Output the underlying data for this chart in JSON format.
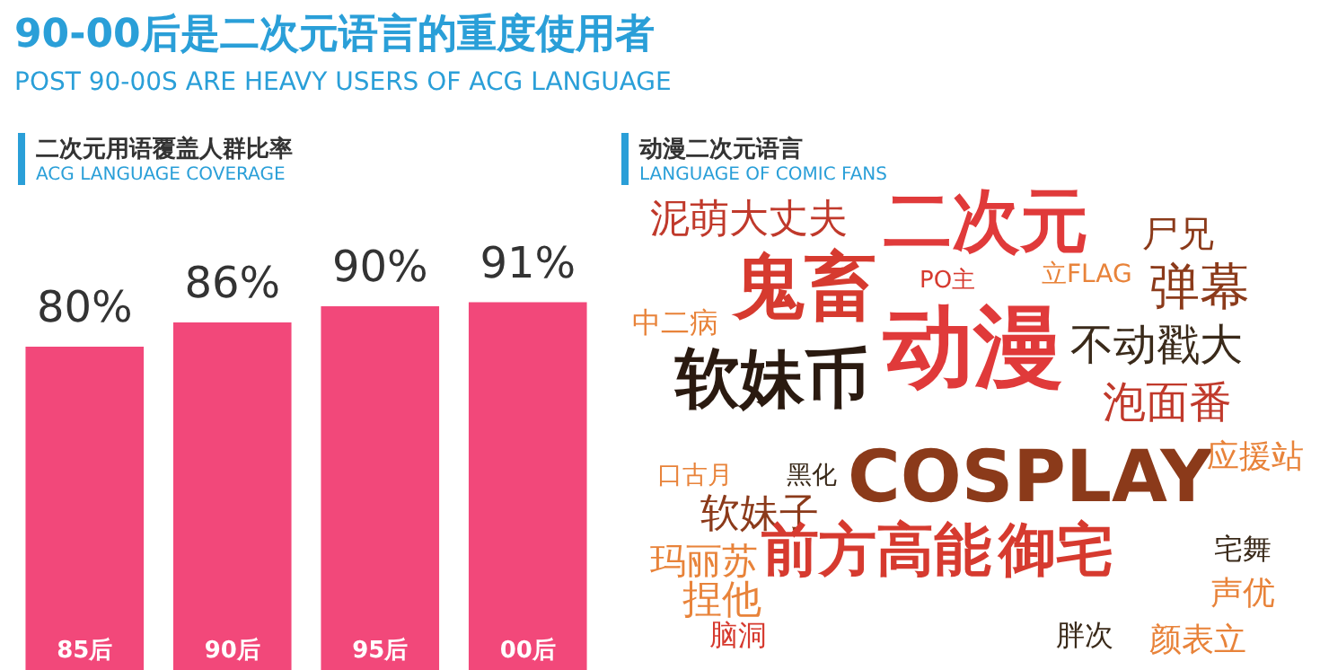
{
  "chart_data": [
    {
      "type": "bar",
      "title": "90-00后是二次元语言的重度使用者",
      "subtitle": "POST 90-00S ARE HEAVY USERS OF ACG LANGUAGE",
      "annotations": [
        "二次元用语覆盖人群比率",
        "ACG LANGUAGE COVERAGE"
      ],
      "categories": [
        "85后",
        "90后",
        "95后",
        "00后"
      ],
      "values": [
        80,
        86,
        90,
        91
      ],
      "value_labels": [
        "80%",
        "86%",
        "90%",
        "91%"
      ],
      "color": "#f2487a",
      "tick_labels": "x",
      "legend": false
    },
    {
      "type": "other",
      "title": "动漫二次元语言",
      "subtitle": "LANGUAGE OF COMIC FANS",
      "annotations": [
        "泥萌大丈夫",
        "二次元",
        "立FLAG",
        "尸兄",
        "鬼畜",
        "PO主",
        "弹幕",
        "中二病",
        "动漫",
        "不动戳大",
        "软妹币",
        "泡面番",
        "口古月",
        "黑化",
        "软妹子",
        "COSPLAY",
        "应援站",
        "玛丽苏",
        "宅舞",
        "前方高能",
        "御宅",
        "捏他",
        "声优",
        "脑洞",
        "胖次",
        "颜表立"
      ]
    }
  ]
}
